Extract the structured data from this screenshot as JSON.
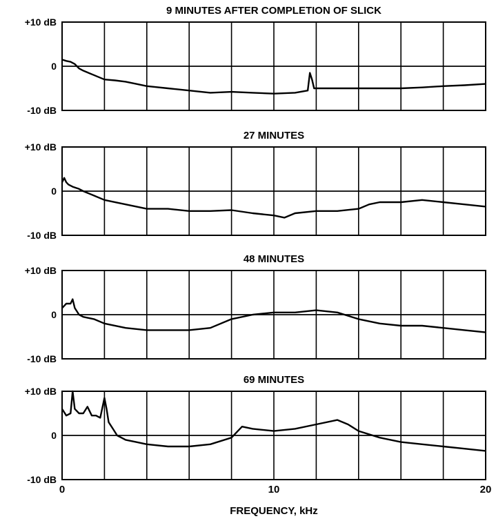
{
  "chart_data": {
    "type": "line",
    "xlabel": "FREQUENCY, kHz",
    "xlim": [
      0,
      20
    ],
    "x_ticks": [
      "0",
      "10",
      "20"
    ],
    "x_ticks_values": [
      0,
      10,
      20
    ],
    "grid": true,
    "vertical_grid_spacing_khz": 2,
    "ylim": [
      -10,
      10
    ],
    "y_ticks": [
      "+10 dB",
      "0",
      "-10 dB"
    ],
    "y_ticks_values": [
      10,
      0,
      -10
    ],
    "colors": {
      "line": "#000000",
      "grid": "#000000",
      "background": "#ffffff"
    },
    "panels": [
      {
        "title": "9 MINUTES AFTER COMPLETION OF SLICK",
        "y_ticks": [
          "+10 dB",
          "0",
          "-10 dB"
        ],
        "series": [
          {
            "x": [
              0,
              0.2,
              0.4,
              0.6,
              0.8,
              1,
              1.5,
              2,
              2.5,
              3,
              3.5,
              4,
              5,
              6,
              7,
              8,
              9,
              10,
              11,
              11.6,
              11.7,
              11.8,
              11.9,
              12,
              13,
              14,
              15,
              16,
              17,
              18,
              19,
              20
            ],
            "y": [
              1.5,
              1.2,
              1.0,
              0.5,
              -0.5,
              -1,
              -2,
              -3,
              -3.2,
              -3.5,
              -4,
              -4.5,
              -5,
              -5.5,
              -6,
              -5.8,
              -6,
              -6.2,
              -6,
              -5.5,
              -1.5,
              -3,
              -5,
              -5,
              -5,
              -5,
              -5,
              -5,
              -4.8,
              -4.5,
              -4.3,
              -4
            ]
          }
        ]
      },
      {
        "title": "27 MINUTES",
        "y_ticks": [
          "+10 dB",
          "0",
          "-10 dB"
        ],
        "series": [
          {
            "x": [
              0,
              0.1,
              0.2,
              0.3,
              0.5,
              0.8,
              1,
              1.5,
              2,
              3,
              4,
              5,
              6,
              7,
              8,
              9,
              10,
              10.5,
              11,
              12,
              13,
              14,
              14.5,
              15,
              16,
              17,
              18,
              19,
              20
            ],
            "y": [
              2,
              3,
              2,
              1.5,
              1,
              0.5,
              0,
              -1,
              -2,
              -3,
              -4,
              -4,
              -4.5,
              -4.5,
              -4.3,
              -5,
              -5.5,
              -6,
              -5,
              -4.5,
              -4.5,
              -4,
              -3,
              -2.5,
              -2.5,
              -2,
              -2.5,
              -3,
              -3.5
            ]
          }
        ]
      },
      {
        "title": "48 MINUTES",
        "y_ticks": [
          "+10 dB",
          "0",
          "-10 dB"
        ],
        "series": [
          {
            "x": [
              0,
              0.2,
              0.4,
              0.5,
              0.6,
              0.8,
              1,
              1.5,
              2,
              3,
              4,
              5,
              6,
              7,
              8,
              9,
              10,
              11,
              12,
              13,
              14,
              15,
              16,
              17,
              18,
              19,
              20
            ],
            "y": [
              1.5,
              2.5,
              2.5,
              3.5,
              1.5,
              0,
              -0.5,
              -1,
              -2,
              -3,
              -3.5,
              -3.5,
              -3.5,
              -3,
              -1,
              0,
              0.5,
              0.5,
              1,
              0.5,
              -1,
              -2,
              -2.5,
              -2.5,
              -3,
              -3.5,
              -4
            ]
          }
        ]
      },
      {
        "title": "69 MINUTES",
        "y_ticks": [
          "+10 dB",
          "0",
          "-10 dB"
        ],
        "series": [
          {
            "x": [
              0,
              0.2,
              0.4,
              0.5,
              0.6,
              0.8,
              1,
              1.2,
              1.4,
              1.6,
              1.8,
              2,
              2.1,
              2.2,
              2.4,
              2.6,
              3,
              3.5,
              4,
              5,
              6,
              7,
              8,
              8.5,
              9,
              10,
              11,
              12,
              13,
              13.5,
              14,
              15,
              16,
              17,
              18,
              19,
              20
            ],
            "y": [
              6,
              4.5,
              5,
              10,
              6,
              5,
              5,
              6.5,
              4.5,
              4.5,
              4,
              8.5,
              6,
              3,
              1.5,
              0,
              -1,
              -1.5,
              -2,
              -2.5,
              -2.5,
              -2,
              -0.5,
              2,
              1.5,
              1,
              1.5,
              2.5,
              3.5,
              2.5,
              1,
              -0.5,
              -1.5,
              -2,
              -2.5,
              -3,
              -3.5
            ]
          }
        ]
      }
    ]
  }
}
